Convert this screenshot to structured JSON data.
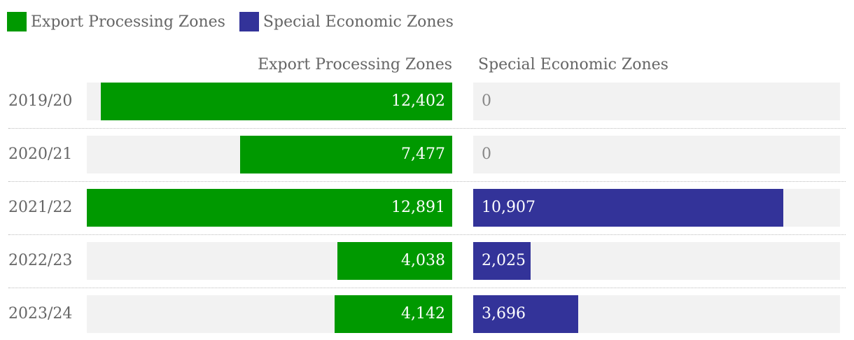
{
  "chart_data": {
    "type": "bar",
    "orientation": "horizontal",
    "categories": [
      "2019/20",
      "2020/21",
      "2021/22",
      "2022/23",
      "2023/24"
    ],
    "series": [
      {
        "name": "Export Processing Zones",
        "color": "#009900",
        "values": [
          12402,
          7477,
          12891,
          4038,
          4142
        ],
        "labels": [
          "12,402",
          "7,477",
          "12,891",
          "4,038",
          "4,142"
        ]
      },
      {
        "name": "Special Economic Zones",
        "color": "#333399",
        "values": [
          0,
          0,
          10907,
          2025,
          3696
        ],
        "labels": [
          "0",
          "0",
          "10,907",
          "2,025",
          "3,696"
        ]
      }
    ],
    "xlim": [
      0,
      12891
    ],
    "legend_position": "top-left"
  },
  "colors": {
    "track": "#f2f2f2",
    "value_text_on_bar": "#ffffff",
    "value_text_off_bar": "#888888"
  }
}
